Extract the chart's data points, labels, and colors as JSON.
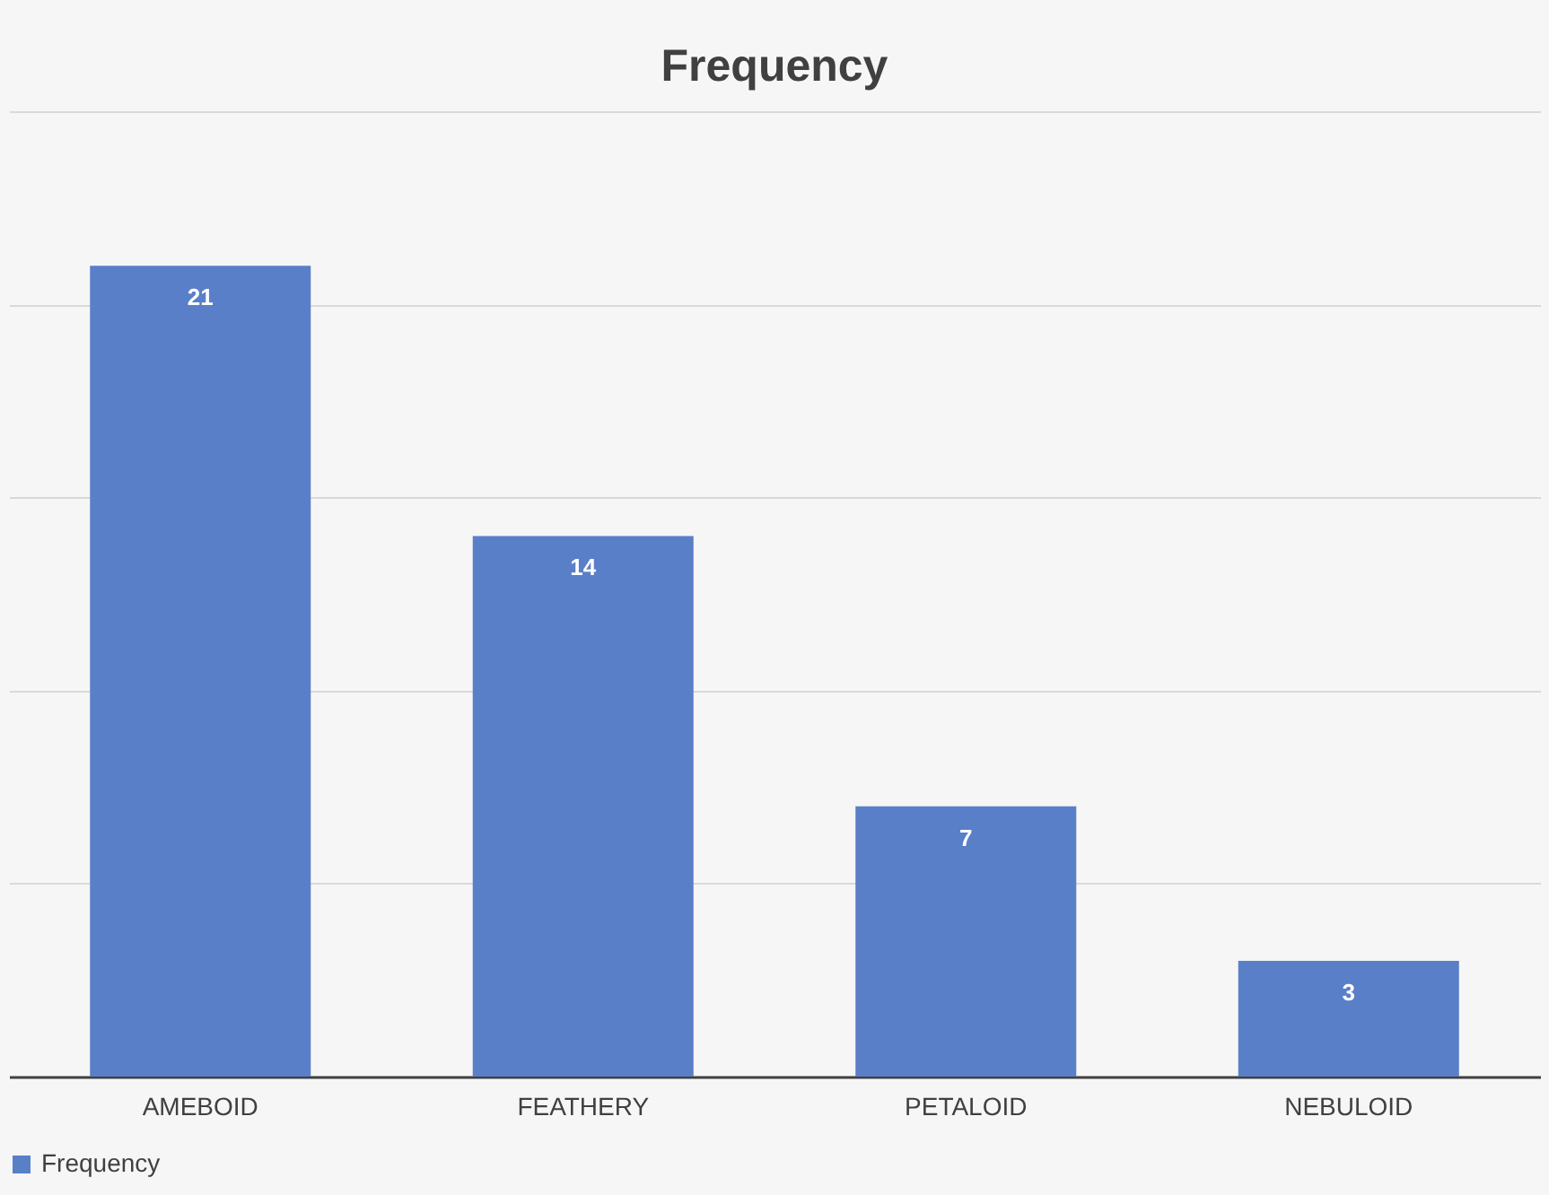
{
  "chart_data": {
    "type": "bar",
    "title": "Frequency",
    "categories": [
      "AMEBOID",
      "FEATHERY",
      "PETALOID",
      "NEBULOID"
    ],
    "series": [
      {
        "name": "Frequency",
        "color": "#5a7fc9",
        "values": [
          21,
          14,
          7,
          3
        ]
      }
    ],
    "ylim": [
      0,
      25
    ],
    "yticks": [
      {
        "value": 0,
        "label": null
      },
      {
        "value": 5,
        "label": null
      },
      {
        "value": 10,
        "label": null
      },
      {
        "value": 15,
        "label": null
      },
      {
        "value": 20,
        "label": null
      },
      {
        "value": 25,
        "label": null
      }
    ],
    "tick_labels": "x",
    "grid": "y",
    "legend": "bottom",
    "data_labels": true
  }
}
